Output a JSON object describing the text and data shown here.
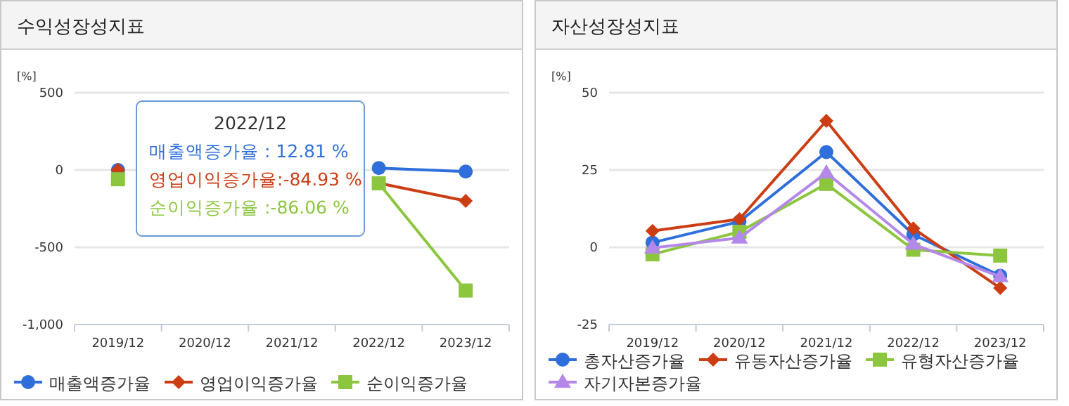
{
  "chart_data": [
    {
      "type": "line",
      "title": "수익성장성지표",
      "ylabel": "[%]",
      "categories": [
        "2019/12",
        "2020/12",
        "2021/12",
        "2022/12",
        "2023/12"
      ],
      "series": [
        {
          "name": "매출액증가율",
          "color": "#2f6fdc",
          "marker": "circle",
          "values": [
            0,
            null,
            null,
            12.81,
            -10
          ]
        },
        {
          "name": "영업이익증가율",
          "color": "#cc3d13",
          "marker": "diamond",
          "values": [
            0,
            null,
            null,
            -84.93,
            -200
          ]
        },
        {
          "name": "순이익증가율",
          "color": "#8cc63f",
          "marker": "square",
          "values": [
            -60,
            null,
            null,
            -86.06,
            -780
          ]
        }
      ],
      "ylim": [
        -1000,
        500
      ],
      "yticks": [
        {
          "value": -1000,
          "label": "-1,000"
        },
        -500,
        0,
        500
      ],
      "grid": "y",
      "legend": "bottom",
      "annotations": [
        "2022/12",
        "매출액증가율 : 12.81 %",
        "영업이익증가율:-84.93 %",
        "순이익증가율 :-86.06 %"
      ]
    },
    {
      "type": "line",
      "title": "자산성장성지표",
      "ylabel": "[%]",
      "categories": [
        "2019/12",
        "2020/12",
        "2021/12",
        "2022/12",
        "2023/12"
      ],
      "series": [
        {
          "name": "총자산증가율",
          "color": "#2f6fdc",
          "marker": "circle",
          "values": [
            1.5,
            8.3,
            30.8,
            4.1,
            -9.2
          ]
        },
        {
          "name": "유동자산증가율",
          "color": "#cc3d13",
          "marker": "diamond",
          "values": [
            5.3,
            9.1,
            40.9,
            6.1,
            -13.2
          ]
        },
        {
          "name": "유형자산증가율",
          "color": "#8cc63f",
          "marker": "square",
          "values": [
            -2.3,
            5,
            20.5,
            -0.8,
            -2.7
          ]
        },
        {
          "name": "자기자본증가율",
          "color": "#b388e8",
          "marker": "triangle",
          "values": [
            -0.2,
            3,
            24.1,
            1,
            -9.5
          ]
        }
      ],
      "ylim": [
        -25,
        50
      ],
      "yticks": [
        -25,
        0,
        25,
        50
      ],
      "grid": "y",
      "legend": "bottom"
    }
  ]
}
